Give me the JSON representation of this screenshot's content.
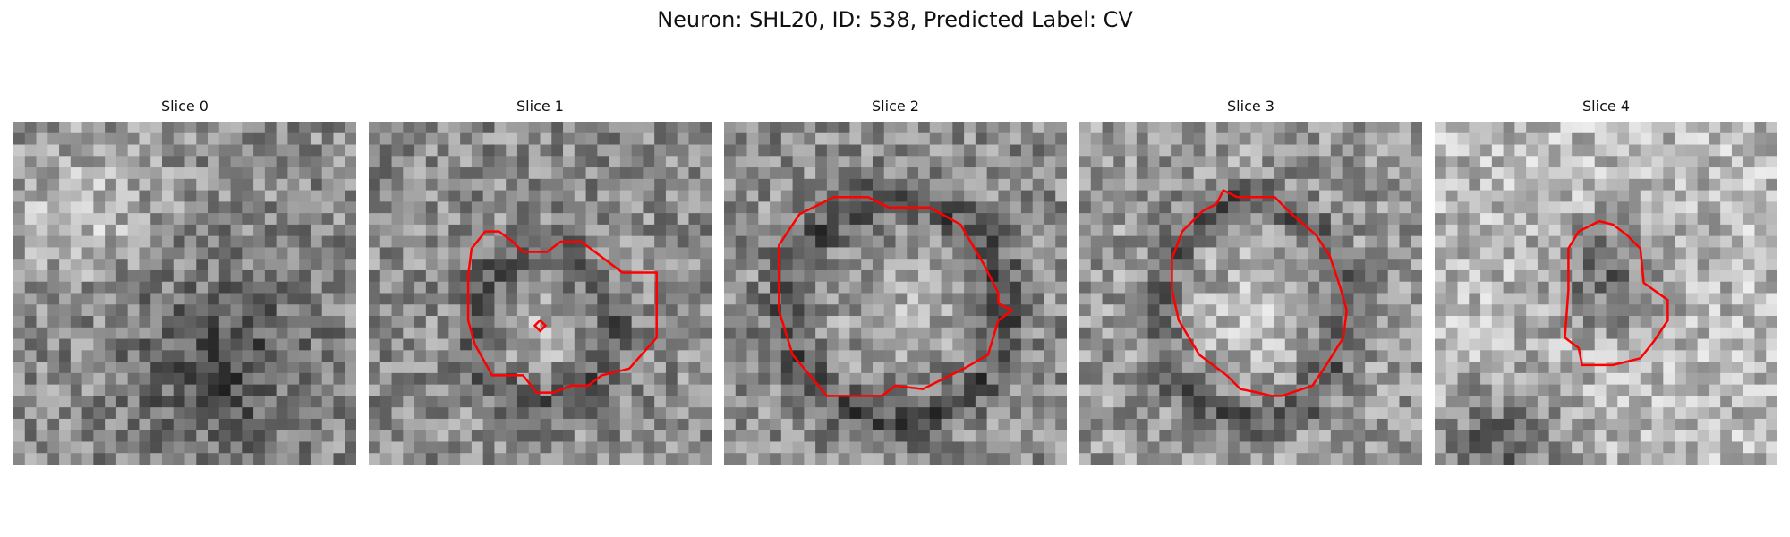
{
  "figure": {
    "title": "Neuron: SHL20, ID: 538, Predicted Label: CV"
  },
  "panels": [
    {
      "title": "Slice 0",
      "has_contour": false
    },
    {
      "title": "Slice 1",
      "has_contour": true
    },
    {
      "title": "Slice 2",
      "has_contour": true
    },
    {
      "title": "Slice 3",
      "has_contour": true
    },
    {
      "title": "Slice 4",
      "has_contour": true
    }
  ],
  "colors": {
    "contour": "#ff0000",
    "background": "#ffffff",
    "image_colormap": "gray"
  }
}
